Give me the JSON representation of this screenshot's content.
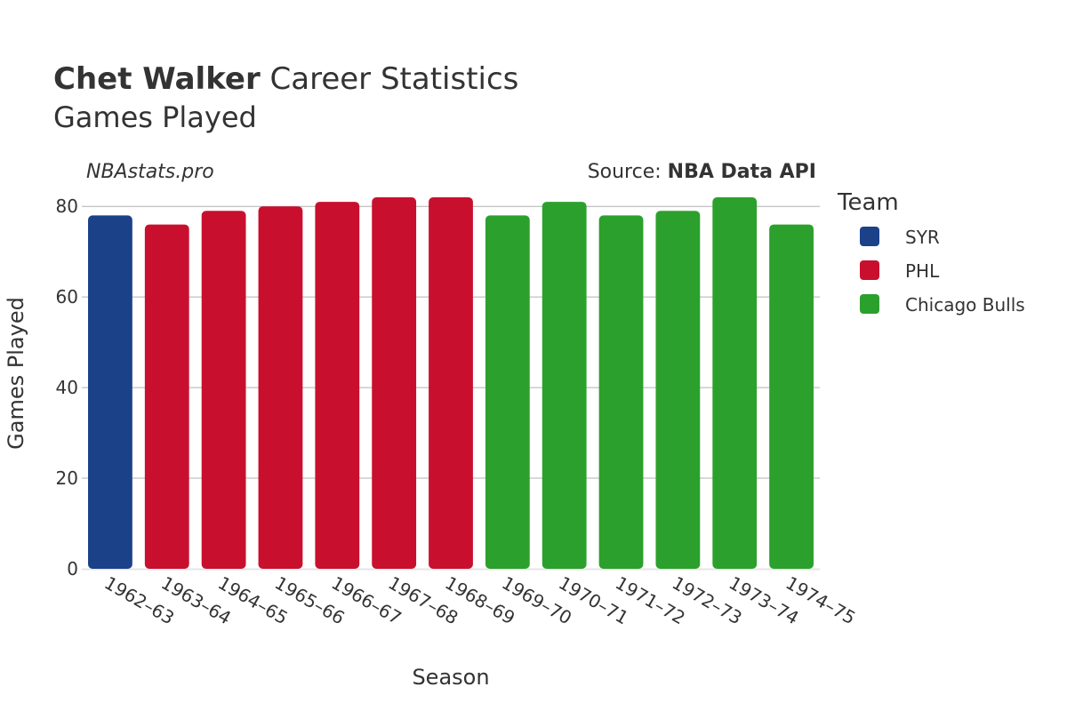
{
  "header": {
    "title_bold": "Chet Walker",
    "title_rest": " Career Statistics",
    "subtitle": "Games Played",
    "watermark": "NBAstats.pro",
    "source_prefix": "Source: ",
    "source_name": "NBA Data API"
  },
  "legend": {
    "title": "Team",
    "items": [
      {
        "label": "SYR",
        "color": "#1b4189"
      },
      {
        "label": "PHL",
        "color": "#c8102e"
      },
      {
        "label": "Chicago Bulls",
        "color": "#2ca02c"
      }
    ]
  },
  "chart_data": {
    "type": "bar",
    "xlabel": "Season",
    "ylabel": "Games Played",
    "ylim": [
      0,
      82
    ],
    "yticks": [
      0,
      20,
      40,
      60,
      80
    ],
    "grid": true,
    "legend_position": "right",
    "categories": [
      "1962–63",
      "1963–64",
      "1964–65",
      "1965–66",
      "1966–67",
      "1967–68",
      "1968–69",
      "1969–70",
      "1970–71",
      "1971–72",
      "1972–73",
      "1973–74",
      "1974–75"
    ],
    "values": [
      78,
      76,
      79,
      80,
      81,
      82,
      82,
      78,
      81,
      78,
      79,
      82,
      76
    ],
    "teams": [
      "SYR",
      "PHL",
      "PHL",
      "PHL",
      "PHL",
      "PHL",
      "PHL",
      "Chicago Bulls",
      "Chicago Bulls",
      "Chicago Bulls",
      "Chicago Bulls",
      "Chicago Bulls",
      "Chicago Bulls"
    ]
  }
}
